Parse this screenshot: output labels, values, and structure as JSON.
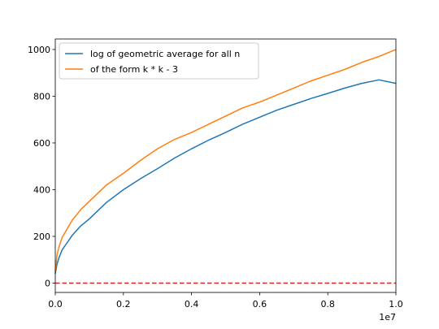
{
  "chart_data": {
    "type": "line",
    "title": "",
    "xlabel": "",
    "ylabel": "",
    "x_offset_label": "1e7",
    "xlim": [
      0,
      1.0
    ],
    "ylim": [
      -40,
      1045
    ],
    "x_ticks": [
      0.0,
      0.2,
      0.4,
      0.6,
      0.8,
      1.0
    ],
    "x_tick_labels": [
      "0.0",
      "0.2",
      "0.4",
      "0.6",
      "0.8",
      "1.0"
    ],
    "y_ticks": [
      0,
      200,
      400,
      600,
      800,
      1000
    ],
    "y_tick_labels": [
      "0",
      "200",
      "400",
      "600",
      "800",
      "1000"
    ],
    "grid": false,
    "legend_position": "upper-left",
    "series": [
      {
        "name": "log of geometric average for all n",
        "color": "#1f77b4",
        "style": "solid",
        "x": [
          0.0,
          0.005,
          0.01,
          0.02,
          0.03,
          0.05,
          0.075,
          0.1,
          0.15,
          0.2,
          0.25,
          0.3,
          0.35,
          0.4,
          0.45,
          0.5,
          0.55,
          0.6,
          0.65,
          0.7,
          0.75,
          0.8,
          0.85,
          0.9,
          0.95,
          1.0
        ],
        "y": [
          40,
          80,
          105,
          142,
          163,
          205,
          245,
          275,
          345,
          400,
          447,
          490,
          535,
          575,
          612,
          645,
          680,
          710,
          740,
          765,
          790,
          812,
          835,
          855,
          870,
          855
        ]
      },
      {
        "name": "of the form k * k - 3",
        "color": "#ff7f0e",
        "style": "solid",
        "x": [
          0.0,
          0.005,
          0.01,
          0.02,
          0.03,
          0.04,
          0.05,
          0.075,
          0.1,
          0.125,
          0.15,
          0.2,
          0.25,
          0.3,
          0.35,
          0.4,
          0.45,
          0.5,
          0.55,
          0.6,
          0.65,
          0.7,
          0.75,
          0.8,
          0.85,
          0.9,
          0.95,
          1.0
        ],
        "y": [
          50,
          120,
          150,
          195,
          220,
          245,
          270,
          315,
          350,
          385,
          420,
          470,
          525,
          575,
          615,
          645,
          680,
          715,
          750,
          775,
          805,
          835,
          865,
          890,
          915,
          945,
          970,
          1000
        ]
      },
      {
        "name": "",
        "color": "#d62728",
        "style": "dashed",
        "x": [
          0.0,
          1.0
        ],
        "y": [
          0,
          0
        ]
      }
    ]
  }
}
